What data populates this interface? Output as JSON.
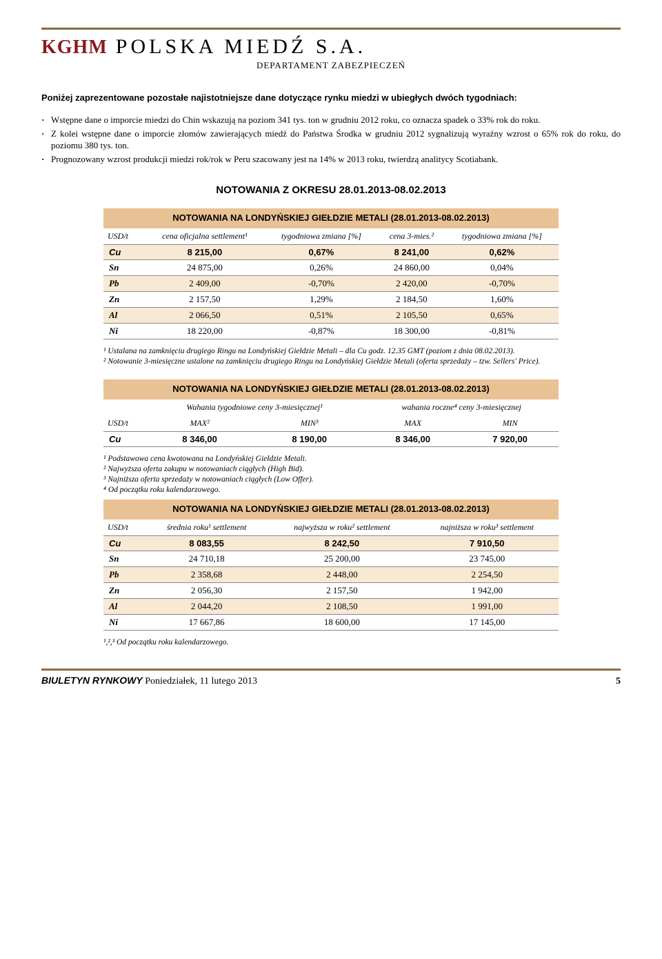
{
  "header": {
    "logo1": "KGHM",
    "logo2": "POLSKA MIEDŹ S.A.",
    "dept": "DEPARTAMENT ZABEZPIECZEŃ"
  },
  "intro": "Poniżej zaprezentowane pozostałe najistotniejsze dane dotyczące rynku miedzi w ubiegłych dwóch tygodniach:",
  "bullets": [
    "Wstępne dane o imporcie miedzi do Chin wskazują na poziom 341 tys. ton w grudniu 2012 roku, co oznacza spadek o 33% rok do roku.",
    "Z kolei wstępne dane o imporcie złomów zawierających miedź do Państwa Środka w grudniu 2012 sygnalizują wyraźny wzrost o 65% rok do roku, do poziomu 380 tys. ton.",
    "Prognozowany wzrost produkcji miedzi rok/rok w Peru szacowany jest na 14% w 2013 roku, twierdzą analitycy Scotiabank."
  ],
  "sectionTitle": "NOTOWANIA Z OKRESU 28.01.2013-08.02.2013",
  "table1": {
    "title": "NOTOWANIA NA LONDYŃSKIEJ GIEŁDZIE METALI (28.01.2013-08.02.2013)",
    "unit": "USD/t",
    "cols": [
      "cena oficjalna settlement¹",
      "tygodniowa zmiana [%]",
      "cena 3-mies.²",
      "tygodniowa zmiana [%]"
    ],
    "rows": [
      {
        "sym": "Cu",
        "v": [
          "8 215,00",
          "0,67%",
          "8 241,00",
          "0,62%"
        ],
        "bold": true,
        "hl": true
      },
      {
        "sym": "Sn",
        "v": [
          "24 875,00",
          "0,26%",
          "24 860,00",
          "0,04%"
        ],
        "hl": false
      },
      {
        "sym": "Pb",
        "v": [
          "2 409,00",
          "-0,70%",
          "2 420,00",
          "-0,70%"
        ],
        "hl": true
      },
      {
        "sym": "Zn",
        "v": [
          "2 157,50",
          "1,29%",
          "2 184,50",
          "1,60%"
        ],
        "hl": false
      },
      {
        "sym": "Al",
        "v": [
          "2 066,50",
          "0,51%",
          "2 105,50",
          "0,65%"
        ],
        "hl": true
      },
      {
        "sym": "Ni",
        "v": [
          "18 220,00",
          "-0,87%",
          "18 300,00",
          "-0,81%"
        ],
        "hl": false
      }
    ],
    "foot": "¹ Ustalana na zamknięciu drugiego Ringu na Londyńskiej Giełdzie Metali – dla Cu godz. 12.35 GMT (poziom z dnia 08.02.2013).\n² Notowanie 3-miesięczne ustalone na zamknięciu drugiego Ringu na Londyńskiej Giełdzie Metali (oferta sprzedaży – tzw. Sellers' Price)."
  },
  "table2": {
    "title": "NOTOWANIA NA LONDYŃSKIEJ GIEŁDZIE METALI (28.01.2013-08.02.2013)",
    "unit": "USD/t",
    "grp1": "Wahania tygodniowe ceny 3-miesięcznej¹",
    "grp2": "wahania roczne⁴ ceny 3-miesięcznej",
    "sub": [
      "MAX²",
      "MIN³",
      "MAX",
      "MIN"
    ],
    "row": {
      "sym": "Cu",
      "v": [
        "8 346,00",
        "8 190,00",
        "8 346,00",
        "7 920,00"
      ],
      "bold": true
    },
    "foot": "¹ Podstawowa cena kwotowana na Londyńskiej Giełdzie Metali.\n² Najwyższa oferta zakupu w notowaniach ciągłych (High Bid).\n³ Najniższa oferta sprzedaży w notowaniach ciągłych (Low Offer).\n⁴ Od początku roku kalendarzowego."
  },
  "table3": {
    "title": "NOTOWANIA NA LONDYŃSKIEJ GIEŁDZIE METALI (28.01.2013-08.02.2013)",
    "unit": "USD/t",
    "cols": [
      "średnia roku¹ settlement",
      "najwyższa w roku² settlement",
      "najniższa w roku³ settlement"
    ],
    "rows": [
      {
        "sym": "Cu",
        "v": [
          "8 083,55",
          "8 242,50",
          "7 910,50"
        ],
        "bold": true,
        "hl": true
      },
      {
        "sym": "Sn",
        "v": [
          "24 710,18",
          "25 200,00",
          "23 745,00"
        ],
        "hl": false
      },
      {
        "sym": "Pb",
        "v": [
          "2 358,68",
          "2 448,00",
          "2 254,50"
        ],
        "hl": true
      },
      {
        "sym": "Zn",
        "v": [
          "2 056,30",
          "2 157,50",
          "1 942,00"
        ],
        "hl": false
      },
      {
        "sym": "Al",
        "v": [
          "2 044,20",
          "2 108,50",
          "1 991,00"
        ],
        "hl": true
      },
      {
        "sym": "Ni",
        "v": [
          "17 667,86",
          "18 600,00",
          "17 145,00"
        ],
        "hl": false
      }
    ],
    "foot": "¹,²,³ Od początku roku kalendarzowego."
  },
  "footer": {
    "left1": "BIULETYN RYNKOWY",
    "left2": " Poniedziałek, 11 lutego 2013",
    "page": "5"
  },
  "colors": {
    "rule": "#8b6a42",
    "tblTitleBg": "#e8c294",
    "rowHl": "#f8e9d4",
    "logoRed": "#8b191b"
  }
}
